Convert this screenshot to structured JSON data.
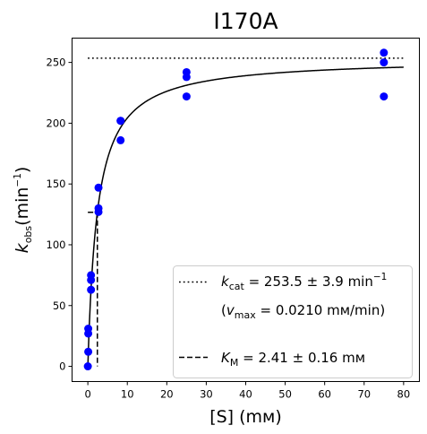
{
  "chart_data": {
    "type": "scatter",
    "title": "I170A",
    "xlabel": "[S] (mм)",
    "ylabel": {
      "main": "k",
      "sub": "obs",
      "unit_open": "(min",
      "unit_sup": "−1",
      "unit_close": ")"
    },
    "xlim": [
      -4,
      84
    ],
    "ylim": [
      -12.5,
      270
    ],
    "xticks": [
      0,
      10,
      20,
      30,
      40,
      50,
      60,
      70,
      80
    ],
    "yticks": [
      0,
      50,
      100,
      150,
      200,
      250
    ],
    "grid": false,
    "legend_position": "bottom-right",
    "series": [
      {
        "kind": "points",
        "color": "#0000ff",
        "points": [
          [
            0.0,
            0
          ],
          [
            0.1,
            12
          ],
          [
            0.1,
            27
          ],
          [
            0.1,
            31
          ],
          [
            0.8,
            63
          ],
          [
            0.8,
            71
          ],
          [
            0.8,
            75
          ],
          [
            2.7,
            127
          ],
          [
            2.7,
            130
          ],
          [
            2.7,
            147
          ],
          [
            8.3,
            186
          ],
          [
            8.3,
            202
          ],
          [
            8.3,
            202
          ],
          [
            25,
            222
          ],
          [
            25,
            238
          ],
          [
            25,
            242
          ],
          [
            75,
            222
          ],
          [
            75,
            250
          ],
          [
            75,
            258
          ]
        ]
      },
      {
        "kind": "fit",
        "model": "michaelis-menten",
        "kcat": 253.5,
        "km": 2.41,
        "x_range": [
          0,
          80
        ],
        "color": "#000000"
      },
      {
        "kind": "hline-dotted",
        "y": 253.5,
        "x_range": [
          0,
          80
        ],
        "color": "#000000"
      },
      {
        "kind": "km-marker-dashed",
        "x": 2.41,
        "y": 126.75,
        "color": "#000000"
      }
    ],
    "legend": {
      "kcat": {
        "k": "k",
        "sub": "cat",
        "text": " = 253.5 ± 3.9 min",
        "sup": "−1"
      },
      "vmax": {
        "open": "(",
        "v": "v",
        "sub": "max",
        "text": " = 0.0210 mм/min)"
      },
      "km": {
        "k": "K",
        "sub": "M",
        "text": " = 2.41 ± 0.16 mм"
      }
    }
  }
}
